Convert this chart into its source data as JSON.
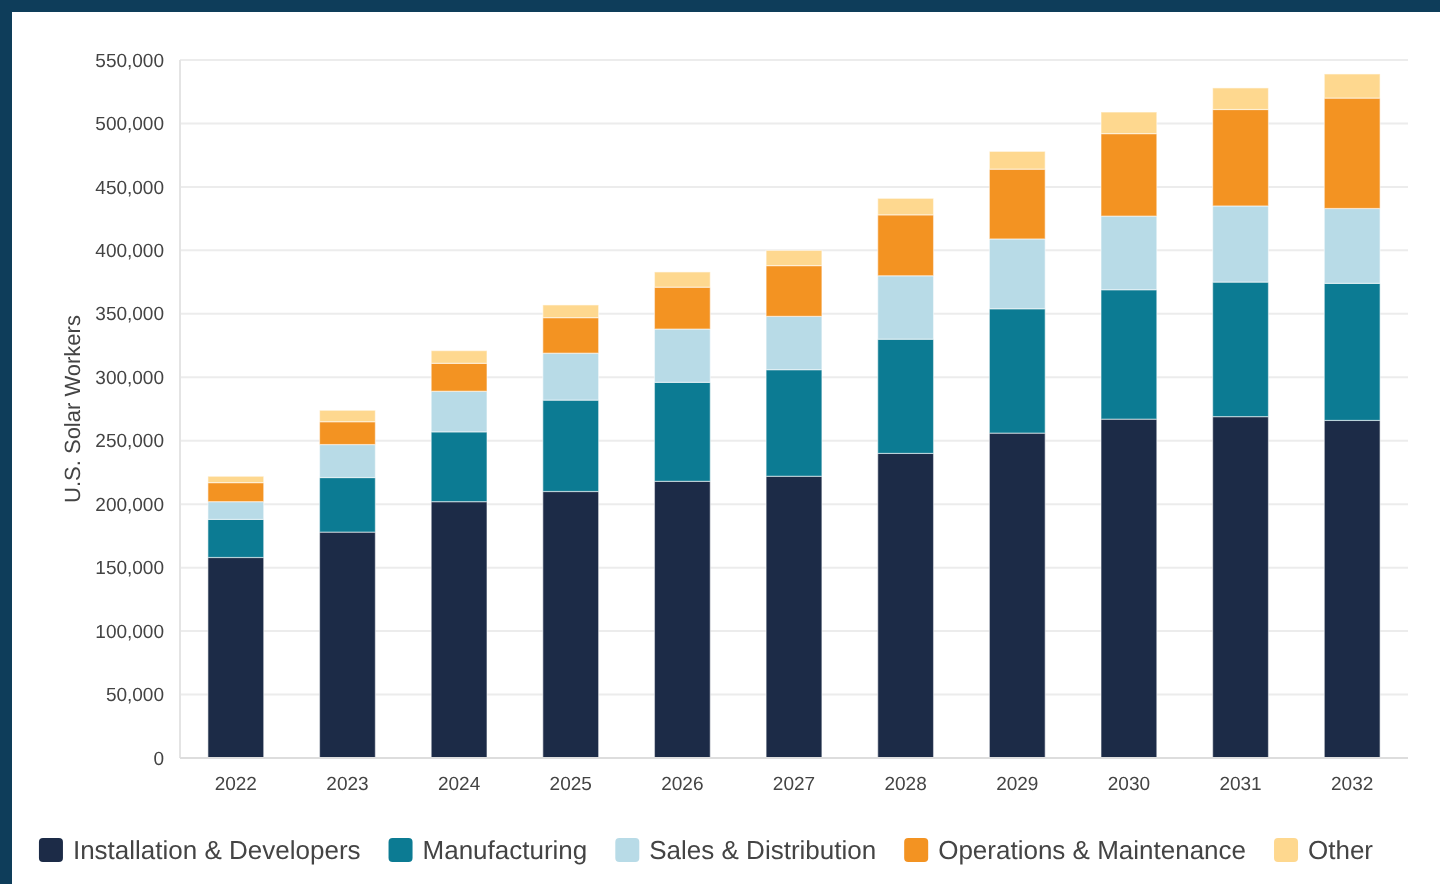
{
  "chart_data": {
    "type": "bar",
    "stacked": true,
    "ylabel": "U.S. Solar Workers",
    "categories": [
      "2022",
      "2023",
      "2024",
      "2025",
      "2026",
      "2027",
      "2028",
      "2029",
      "2030",
      "2031",
      "2032"
    ],
    "series": [
      {
        "name": "Installation & Developers",
        "color": "#1c2b47",
        "values": [
          158000,
          178000,
          202000,
          210000,
          218000,
          222000,
          240000,
          256000,
          267000,
          269000,
          266000
        ]
      },
      {
        "name": "Manufacturing",
        "color": "#0c7b93",
        "values": [
          30000,
          43000,
          55000,
          72000,
          78000,
          84000,
          90000,
          98000,
          102000,
          106000,
          108000
        ]
      },
      {
        "name": "Sales & Distribution",
        "color": "#b8dbe7",
        "values": [
          14000,
          26000,
          32000,
          37000,
          42000,
          42000,
          50000,
          55000,
          58000,
          60000,
          59000
        ]
      },
      {
        "name": "Operations & Maintenance",
        "color": "#f39322",
        "values": [
          15000,
          18000,
          22000,
          28000,
          33000,
          40000,
          48000,
          55000,
          65000,
          76000,
          87000
        ]
      },
      {
        "name": "Other",
        "color": "#fed88f",
        "values": [
          5000,
          9000,
          10000,
          10000,
          12000,
          12000,
          13000,
          14000,
          17000,
          17000,
          19000
        ]
      }
    ],
    "ylim": [
      0,
      550000
    ],
    "yticks": [
      {
        "value": 0,
        "label": "0"
      },
      {
        "value": 50000,
        "label": "50,000"
      },
      {
        "value": 100000,
        "label": "100,000"
      },
      {
        "value": 150000,
        "label": "150,000"
      },
      {
        "value": 200000,
        "label": "200,000"
      },
      {
        "value": 250000,
        "label": "250,000"
      },
      {
        "value": 300000,
        "label": "300,000"
      },
      {
        "value": 350000,
        "label": "350,000"
      },
      {
        "value": 400000,
        "label": "400,000"
      },
      {
        "value": 450000,
        "label": "450,000"
      },
      {
        "value": 500000,
        "label": "500,000"
      },
      {
        "value": 550000,
        "label": "550,000"
      }
    ],
    "grid": "y",
    "legend": "bottom"
  }
}
